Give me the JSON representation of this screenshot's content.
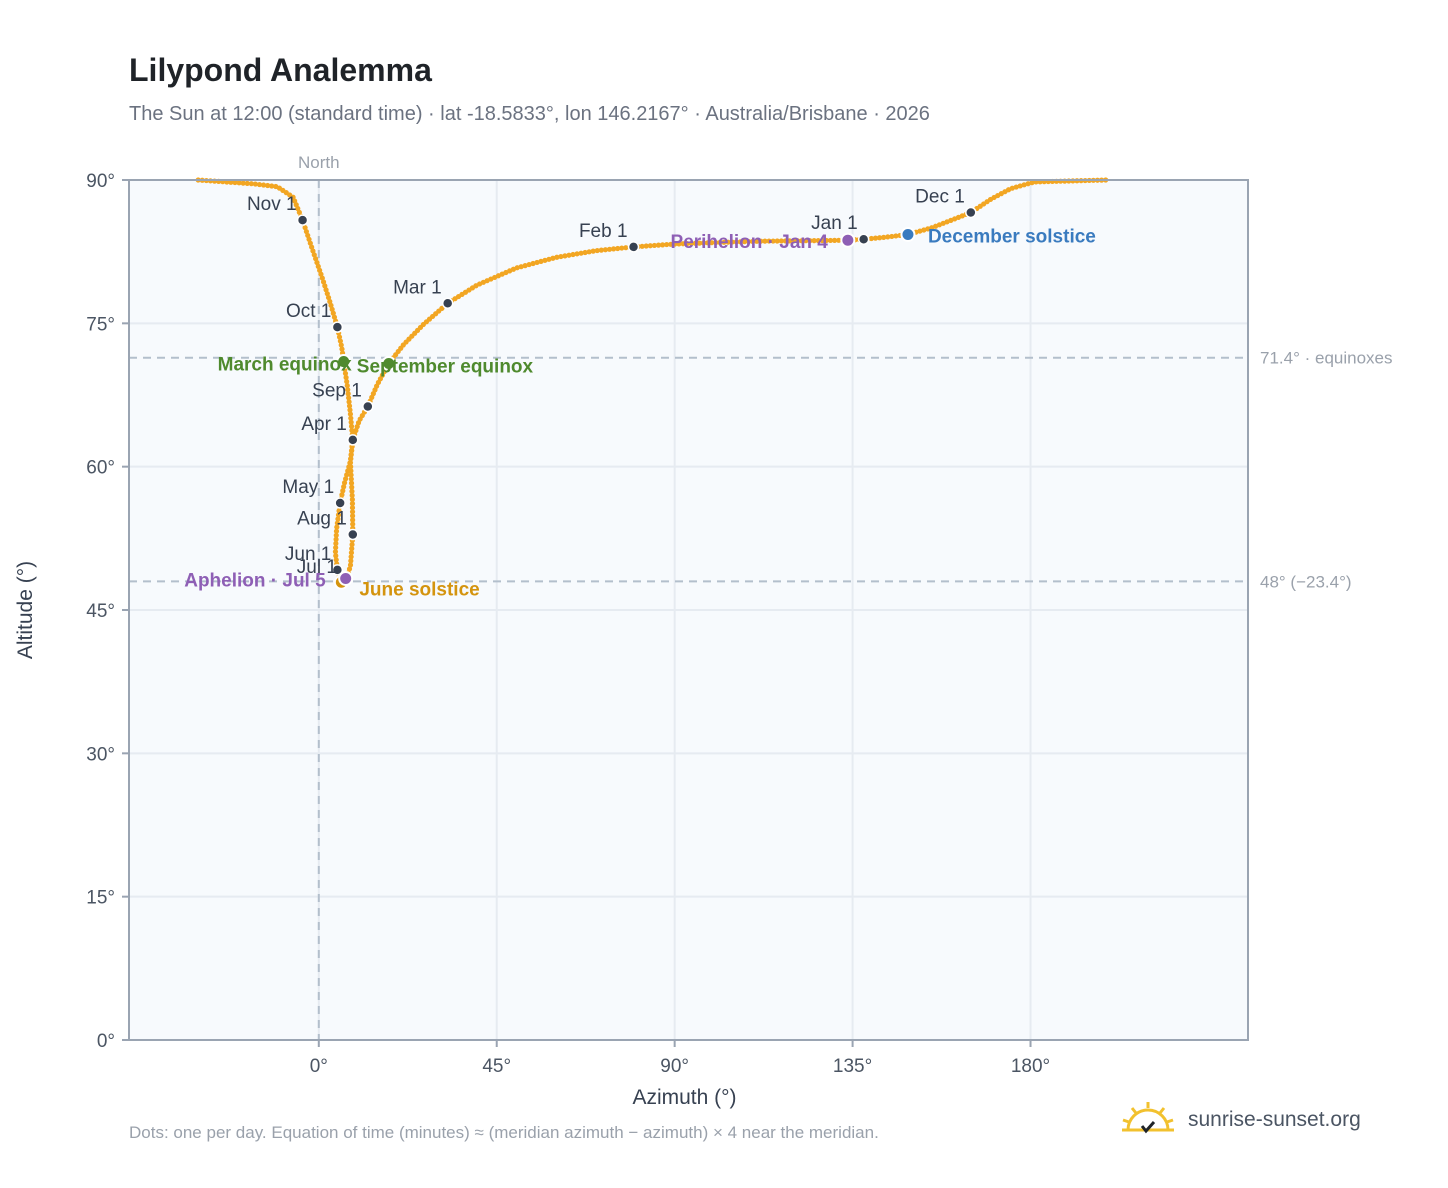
{
  "title": "Lilypond Analemma",
  "subtitle": "The Sun at 12:00 (standard time) · lat -18.5833°, lon 146.2167° · Australia/Brisbane · 2026",
  "footnote": "Dots: one per day. Equation of time (minutes) ≈ (meridian azimuth − azimuth) × 4 near the meridian.",
  "brand": {
    "name": "sunrise-sunset.org",
    "icon": "sunrise-logo-icon"
  },
  "colors": {
    "curve": "#f2a623",
    "month": "#374151",
    "equinox": "#4f8a2e",
    "solstice_dec": "#3a7bbf",
    "solstice_jun": "#d4940f",
    "apsis": "#8e5fb5",
    "refline": "#b3bfcc",
    "plot_bg": "#f7fafd",
    "grid": "#e6ebf1"
  },
  "chart_data": {
    "type": "scatter",
    "xlabel": "Azimuth (°)",
    "ylabel": "Altitude (°)",
    "xlim": [
      -48,
      235
    ],
    "ylim": [
      0,
      90
    ],
    "x_ticks": [
      0,
      45,
      90,
      135,
      180
    ],
    "x_tick_labels": [
      "0°",
      "45°",
      "90°",
      "135°",
      "180°"
    ],
    "y_ticks": [
      0,
      15,
      30,
      45,
      60,
      75,
      90
    ],
    "y_tick_labels": [
      "0°",
      "15°",
      "30°",
      "45°",
      "60°",
      "75°",
      "90°"
    ],
    "grid": true,
    "meridian": {
      "x": 0,
      "label": "North"
    },
    "ref_lines": [
      {
        "y": 71.4,
        "label": "71.4° · equinoxes"
      },
      {
        "y": 48.0,
        "label": "48° (−23.4°)"
      }
    ],
    "monthly": [
      {
        "label": "Jan 1",
        "x": 137.8,
        "y": 83.8
      },
      {
        "label": "Feb 1",
        "x": 79.6,
        "y": 83.0
      },
      {
        "label": "Mar 1",
        "x": 32.6,
        "y": 77.1
      },
      {
        "label": "Apr 1",
        "x": 8.6,
        "y": 62.8
      },
      {
        "label": "May 1",
        "x": 5.4,
        "y": 56.2
      },
      {
        "label": "Jun 1",
        "x": 4.7,
        "y": 49.2
      },
      {
        "label": "Jul 1",
        "x": 6.1,
        "y": 47.8
      },
      {
        "label": "Aug 1",
        "x": 8.6,
        "y": 52.9
      },
      {
        "label": "Sep 1",
        "x": 12.4,
        "y": 66.3
      },
      {
        "label": "Oct 1",
        "x": 4.7,
        "y": 74.6
      },
      {
        "label": "Nov 1",
        "x": -4.1,
        "y": 85.8
      },
      {
        "label": "Dec 1",
        "x": 164.9,
        "y": 86.6
      }
    ],
    "events": [
      {
        "label": "March equinox",
        "x": 6.3,
        "y": 71.0,
        "kind": "equinox"
      },
      {
        "label": "September equinox",
        "x": 17.7,
        "y": 70.8,
        "kind": "equinox"
      },
      {
        "label": "December solstice",
        "x": 149.0,
        "y": 84.3,
        "kind": "solstice_dec"
      },
      {
        "label": "June solstice",
        "x": 5.7,
        "y": 47.9,
        "kind": "solstice_jun"
      },
      {
        "label": "Perihelion · Jan 4",
        "x": 133.8,
        "y": 83.7,
        "kind": "apsis"
      },
      {
        "label": "Aphelion · Jul 5",
        "x": 6.8,
        "y": 48.3,
        "kind": "apsis"
      }
    ],
    "curve_keypoints": [
      [
        -30.5,
        90.0
      ],
      [
        -16.5,
        89.6
      ],
      [
        -10.5,
        89.3
      ],
      [
        -6.5,
        88.2
      ],
      [
        -4.1,
        85.8
      ],
      [
        -1.5,
        82.6
      ],
      [
        1.0,
        79.6
      ],
      [
        3.0,
        77.0
      ],
      [
        4.7,
        74.6
      ],
      [
        5.8,
        72.5
      ],
      [
        6.3,
        71.0
      ],
      [
        7.2,
        68.5
      ],
      [
        8.0,
        65.5
      ],
      [
        8.6,
        62.8
      ],
      [
        8.0,
        60.6
      ],
      [
        6.5,
        58.3
      ],
      [
        5.4,
        56.2
      ],
      [
        4.5,
        53.5
      ],
      [
        4.2,
        51.0
      ],
      [
        4.7,
        49.2
      ],
      [
        5.7,
        47.9
      ],
      [
        6.1,
        47.8
      ],
      [
        7.0,
        48.3
      ],
      [
        8.0,
        49.6
      ],
      [
        8.6,
        52.9
      ],
      [
        8.5,
        56.5
      ],
      [
        8.0,
        60.5
      ],
      [
        8.6,
        62.8
      ],
      [
        10.2,
        64.8
      ],
      [
        12.4,
        66.3
      ],
      [
        14.8,
        68.6
      ],
      [
        17.7,
        70.8
      ],
      [
        21.5,
        72.8
      ],
      [
        26.5,
        74.9
      ],
      [
        32.6,
        77.1
      ],
      [
        40.0,
        79.0
      ],
      [
        50.0,
        80.8
      ],
      [
        60.0,
        81.9
      ],
      [
        70.0,
        82.6
      ],
      [
        79.6,
        83.0
      ],
      [
        90.0,
        83.3
      ],
      [
        100.0,
        83.45
      ],
      [
        112.0,
        83.6
      ],
      [
        124.0,
        83.65
      ],
      [
        133.8,
        83.7
      ],
      [
        137.8,
        83.8
      ],
      [
        143.0,
        84.0
      ],
      [
        149.0,
        84.3
      ],
      [
        155.0,
        85.0
      ],
      [
        160.0,
        85.8
      ],
      [
        164.9,
        86.6
      ],
      [
        170.0,
        88.0
      ],
      [
        175.0,
        89.1
      ],
      [
        181.0,
        89.8
      ],
      [
        199.0,
        90.0
      ]
    ]
  }
}
